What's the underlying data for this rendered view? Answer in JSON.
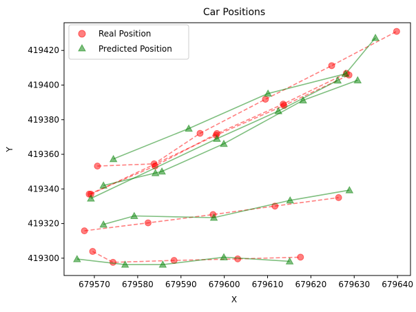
{
  "chart_data": {
    "type": "scatter",
    "title": "Car Positions",
    "xlabel": "X",
    "ylabel": "Y",
    "xlim": [
      679563,
      679643
    ],
    "ylim": [
      419290,
      419436
    ],
    "xticks": [
      679570,
      679580,
      679590,
      679600,
      679610,
      679620,
      679630,
      679640
    ],
    "yticks": [
      419300,
      419320,
      419340,
      419360,
      419380,
      419400,
      419420
    ],
    "grid": false,
    "legend_position": "top-left",
    "series": [
      {
        "name": "Real Position",
        "marker": "circle",
        "line_style": "dashed",
        "color": "#ff0000",
        "traces": [
          [
            [
              679570.7,
              419353.2
            ],
            [
              679583.8,
              419354.5
            ],
            [
              679594.4,
              419372.1
            ],
            [
              679609.5,
              419391.8
            ],
            [
              679624.8,
              419411.2
            ],
            [
              679639.8,
              419431.0
            ]
          ],
          [
            [
              679568.8,
              419337.0
            ],
            [
              679584.0,
              419353.2
            ],
            [
              679598.3,
              419372.0
            ],
            [
              679613.6,
              419389.0
            ],
            [
              679628.2,
              419406.8
            ]
          ],
          [
            [
              679569.2,
              419337.0
            ],
            [
              679598.1,
              419371.0
            ],
            [
              679613.8,
              419388.2
            ],
            [
              679628.8,
              419405.8
            ]
          ],
          [
            [
              679567.7,
              419315.8
            ],
            [
              679582.4,
              419320.4
            ],
            [
              679597.4,
              419325.2
            ],
            [
              679611.7,
              419330.1
            ],
            [
              679626.4,
              419335.0
            ]
          ],
          [
            [
              679569.6,
              419303.9
            ],
            [
              679574.3,
              419297.6
            ],
            [
              679588.4,
              419298.7
            ],
            [
              679603.1,
              419299.6
            ],
            [
              679617.6,
              419300.6
            ]
          ]
        ]
      },
      {
        "name": "Predicted Position",
        "marker": "triangle",
        "line_style": "solid",
        "color": "#008000",
        "traces": [
          [
            [
              679574.4,
              419357.3
            ],
            [
              679591.8,
              419374.9
            ],
            [
              679610.1,
              419395.1
            ],
            [
              679628.0,
              419406.5
            ],
            [
              679634.9,
              419427.3
            ]
          ],
          [
            [
              679569.2,
              419334.5
            ],
            [
              679598.3,
              419369.0
            ],
            [
              679612.5,
              419385.0
            ],
            [
              679626.2,
              419402.7
            ]
          ],
          [
            [
              679572.1,
              419342.0
            ],
            [
              679584.1,
              419349.2
            ],
            [
              679585.6,
              419350.1
            ],
            [
              679599.9,
              419366.1
            ],
            [
              679618.2,
              419391.2
            ],
            [
              679630.8,
              419402.8
            ]
          ],
          [
            [
              679572.1,
              419319.5
            ],
            [
              679579.2,
              419324.4
            ],
            [
              679597.6,
              419323.4
            ],
            [
              679615.2,
              419333.4
            ],
            [
              679628.9,
              419339.3
            ]
          ],
          [
            [
              679566.0,
              419299.5
            ],
            [
              679577.1,
              419296.3
            ],
            [
              679585.8,
              419296.3
            ],
            [
              679599.9,
              419300.6
            ],
            [
              679615.1,
              419298.2
            ]
          ]
        ]
      }
    ]
  }
}
